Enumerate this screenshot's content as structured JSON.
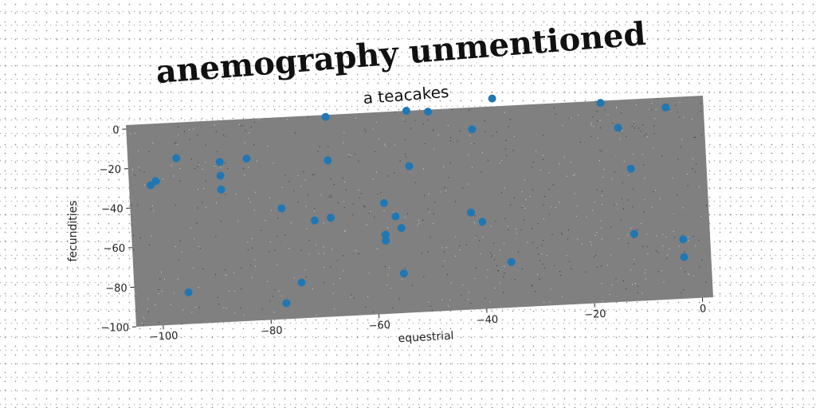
{
  "chart_data": {
    "type": "scatter",
    "title": "anemography unmentioned",
    "subtitle": "a teacakes",
    "xlabel": "equestrial",
    "ylabel": "fecundities",
    "xlim": [
      -105,
      2
    ],
    "ylim": [
      -100,
      2
    ],
    "xticks": [
      -100,
      -80,
      -60,
      -40,
      -20,
      0
    ],
    "yticks": [
      0,
      -20,
      -40,
      -60,
      -80,
      -100
    ],
    "grid": false,
    "background_color": "#808080",
    "marker_color": "#1f77b4",
    "series": [
      {
        "x": [
          -68,
          -53,
          -49,
          -37,
          -17,
          -5,
          -41,
          -14,
          -96,
          -88,
          -83,
          -68,
          -101,
          -100,
          -88,
          -88,
          -53,
          -12,
          -77,
          -58,
          -56,
          -68,
          -71,
          -42,
          -55,
          -40,
          -58,
          -58,
          -12,
          -3,
          -35,
          -95,
          -74,
          -55,
          -3,
          -77
        ],
        "y": [
          1,
          2,
          1,
          6,
          1,
          -3,
          -9,
          -12,
          -16,
          -19,
          -18,
          -21,
          -29,
          -27,
          -26,
          -33,
          -26,
          -33,
          -44,
          -44,
          -51,
          -50,
          -51,
          -51,
          -57,
          -56,
          -60,
          -63,
          -66,
          -70,
          -77,
          -84,
          -82,
          -80,
          -79,
          -92
        ]
      }
    ]
  }
}
